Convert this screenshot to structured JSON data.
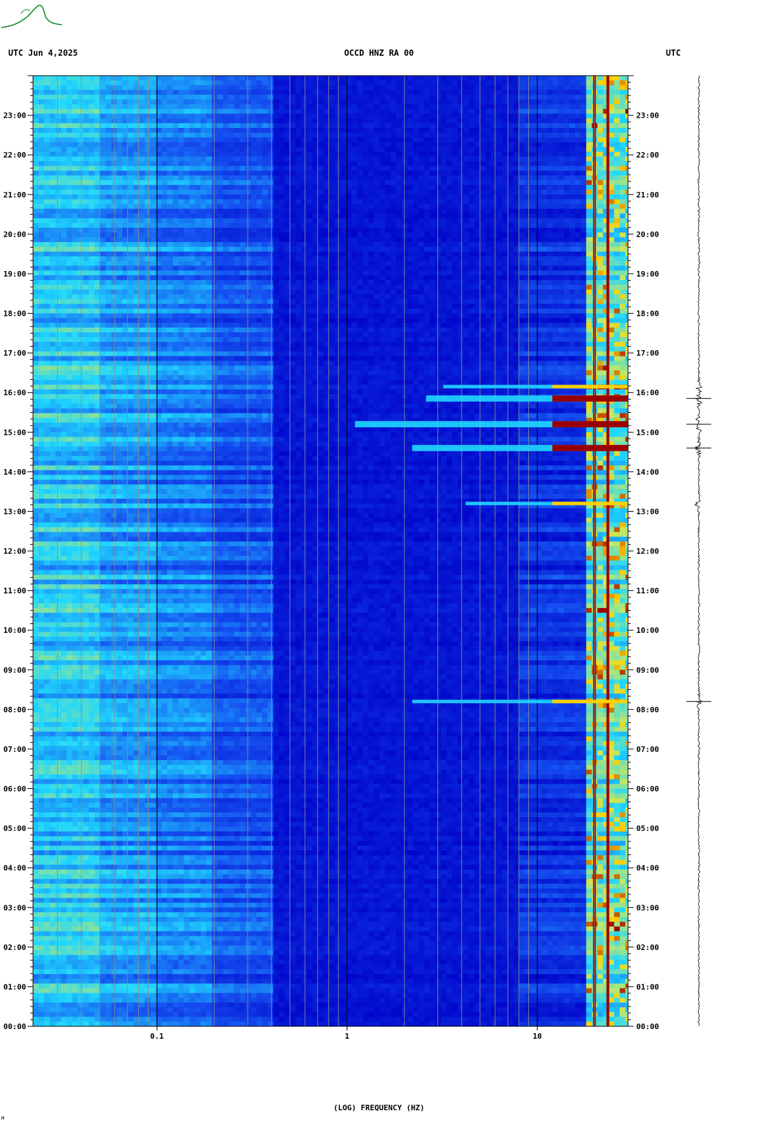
{
  "header": {
    "left": "UTC  Jun 4,2025",
    "center": "OCCD HNZ RA 00",
    "right": "UTC"
  },
  "logo": {
    "name": "OPGC",
    "icon": "opgc-logo-icon"
  },
  "footer_mark": "M",
  "colors": {
    "background": "#0000c8",
    "low": "#1550f0",
    "mid": "#20d8ff",
    "high": "#c8e860",
    "peak": "#ffd000",
    "hot": "#9a0000",
    "waveform": "#000000"
  },
  "chart_data": {
    "type": "heatmap",
    "title": "OCCD HNZ RA 00",
    "xlabel": "(LOG) FREQUENCY (HZ)",
    "ylabel": "UTC",
    "x_scale": "log",
    "xlim": [
      0.0223,
      30
    ],
    "x_ticks": [
      {
        "value": 0.1,
        "label": "0.1"
      },
      {
        "value": 1,
        "label": "1"
      },
      {
        "value": 10,
        "label": "10"
      }
    ],
    "ylim": [
      0,
      24
    ],
    "y_ticks": [
      "00:00",
      "01:00",
      "02:00",
      "03:00",
      "04:00",
      "05:00",
      "06:00",
      "07:00",
      "08:00",
      "09:00",
      "10:00",
      "11:00",
      "12:00",
      "13:00",
      "14:00",
      "15:00",
      "16:00",
      "17:00",
      "18:00",
      "19:00",
      "20:00",
      "21:00",
      "22:00",
      "23:00"
    ],
    "persistent_lines_hz": [
      20,
      23.5
    ],
    "events": [
      {
        "time_utc_hours": 8.2,
        "fmin_hz": 2.2,
        "strength": "moderate"
      },
      {
        "time_utc_hours": 13.2,
        "fmin_hz": 4.2,
        "strength": "moderate"
      },
      {
        "time_utc_hours": 14.6,
        "fmin_hz": 2.2,
        "strength": "strong"
      },
      {
        "time_utc_hours": 15.2,
        "fmin_hz": 1.1,
        "strength": "strong"
      },
      {
        "time_utc_hours": 15.85,
        "fmin_hz": 2.6,
        "strength": "strong"
      },
      {
        "time_utc_hours": 16.15,
        "fmin_hz": 3.2,
        "strength": "moderate"
      }
    ]
  }
}
